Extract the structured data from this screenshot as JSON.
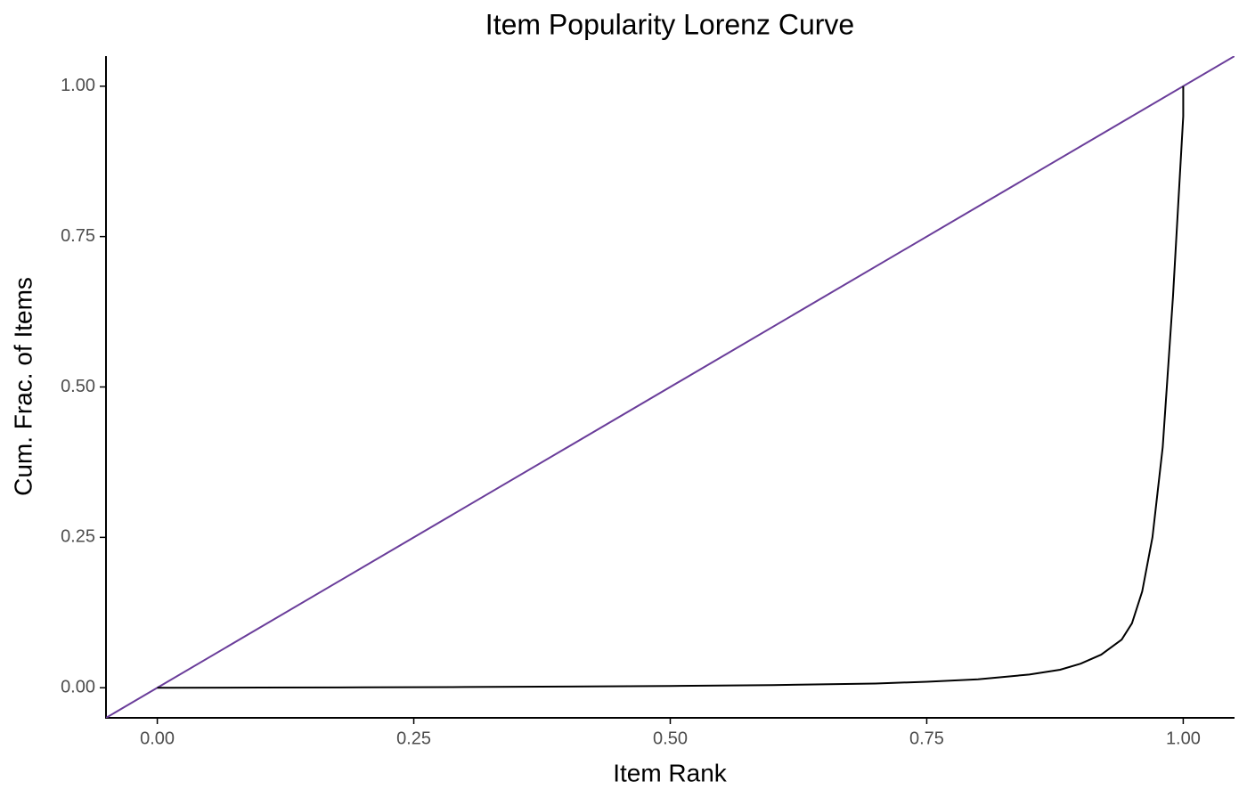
{
  "chart_data": {
    "type": "line",
    "title": "Item Popularity Lorenz Curve",
    "x_label": "Item Rank",
    "y_label": "Cum. Frac. of Items",
    "x": [
      0,
      0.1,
      0.2,
      0.3,
      0.4,
      0.5,
      0.6,
      0.7,
      0.75,
      0.8,
      0.85,
      0.88,
      0.9,
      0.92,
      0.94,
      0.95,
      0.96,
      0.97,
      0.98,
      0.99,
      0.995,
      1.0,
      1.0
    ],
    "series": [
      {
        "color": "#000000",
        "values": [
          0,
          0.0003,
          0.0007,
          0.0012,
          0.002,
          0.003,
          0.0045,
          0.007,
          0.01,
          0.014,
          0.022,
          0.03,
          0.04,
          0.055,
          0.08,
          0.107,
          0.16,
          0.25,
          0.4,
          0.65,
          0.8,
          0.95,
          1.0
        ]
      }
    ],
    "reference_line": {
      "slope": 1,
      "intercept": 0,
      "color": "#6a3d9a"
    },
    "xlim": [
      -0.05,
      1.05
    ],
    "ylim": [
      -0.05,
      1.05
    ],
    "xticks": [
      {
        "value": 0,
        "label": "0.00"
      },
      {
        "value": 0.25,
        "label": "0.25"
      },
      {
        "value": 0.5,
        "label": "0.50"
      },
      {
        "value": 0.75,
        "label": "0.75"
      },
      {
        "value": 1,
        "label": "1.00"
      }
    ],
    "yticks": [
      {
        "value": 0,
        "label": "0.00"
      },
      {
        "value": 0.25,
        "label": "0.25"
      },
      {
        "value": 0.5,
        "label": "0.50"
      },
      {
        "value": 0.75,
        "label": "0.75"
      },
      {
        "value": 1,
        "label": "1.00"
      }
    ],
    "grid": false
  }
}
